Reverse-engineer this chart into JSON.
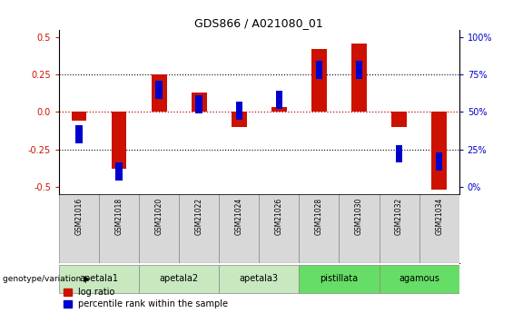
{
  "title": "GDS866 / A021080_01",
  "samples": [
    "GSM21016",
    "GSM21018",
    "GSM21020",
    "GSM21022",
    "GSM21024",
    "GSM21026",
    "GSM21028",
    "GSM21030",
    "GSM21032",
    "GSM21034"
  ],
  "log_ratio": [
    -0.06,
    -0.38,
    0.25,
    0.13,
    -0.1,
    0.03,
    0.42,
    0.46,
    -0.1,
    -0.52
  ],
  "percentile_rank": [
    35,
    10,
    65,
    55,
    51,
    58,
    78,
    78,
    22,
    17
  ],
  "groups": [
    {
      "name": "apetala1",
      "samples": [
        "GSM21016",
        "GSM21018"
      ],
      "color": "#c8e8c0"
    },
    {
      "name": "apetala2",
      "samples": [
        "GSM21020",
        "GSM21022"
      ],
      "color": "#c8e8c0"
    },
    {
      "name": "apetala3",
      "samples": [
        "GSM21024",
        "GSM21026"
      ],
      "color": "#c8e8c0"
    },
    {
      "name": "pistillata",
      "samples": [
        "GSM21028",
        "GSM21030"
      ],
      "color": "#66dd66"
    },
    {
      "name": "agamous",
      "samples": [
        "GSM21032",
        "GSM21034"
      ],
      "color": "#66dd66"
    }
  ],
  "bar_color_red": "#cc1100",
  "bar_color_blue": "#0000cc",
  "ylim": [
    -0.55,
    0.55
  ],
  "yticks_left": [
    -0.5,
    -0.25,
    0.0,
    0.25,
    0.5
  ],
  "yticks_right": [
    0,
    25,
    50,
    75,
    100
  ],
  "dotted_lines_black": [
    -0.25,
    0.25
  ],
  "zero_line_color": "#cc0000",
  "bar_width": 0.38,
  "blue_marker_size": 0.06,
  "legend_log_ratio": "log ratio",
  "legend_percentile": "percentile rank within the sample",
  "genotype_label": "genotype/variation"
}
